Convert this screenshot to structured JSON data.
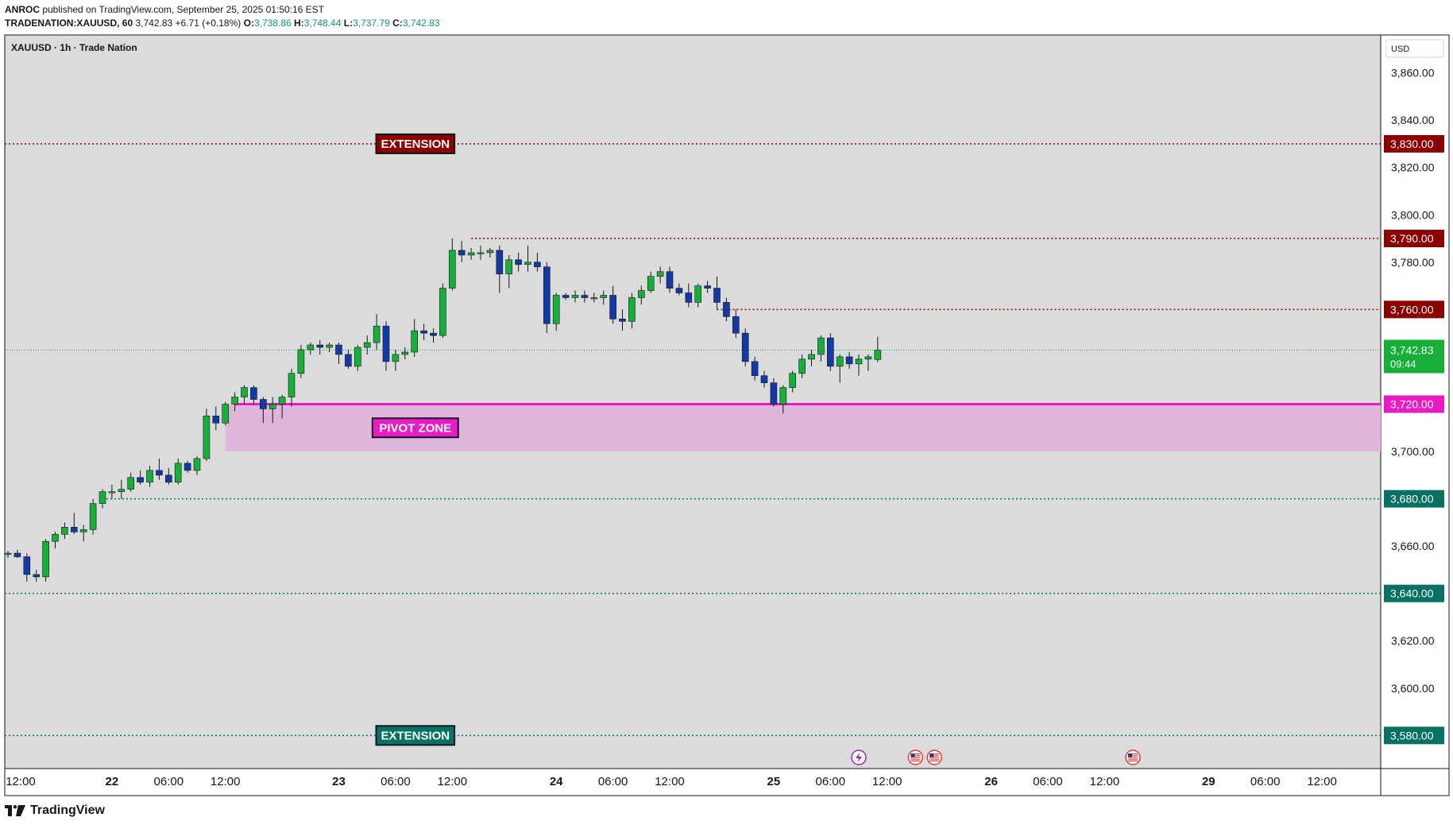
{
  "header": {
    "publisher": "ANROC",
    "published_text": " published on TradingView.com, September 25, 2025 01:50:16 EST",
    "symbol_full": "TRADENATION:XAUUSD, 60",
    "last": "3,742.83",
    "change": "+6.71 (+0.18%)",
    "o_label": "O:",
    "o_value": "3,738.86",
    "h_label": "H:",
    "h_value": "3,748.44",
    "l_label": "L:",
    "l_value": "3,737.79",
    "c_label": "C:",
    "c_value": "3,742.83"
  },
  "footer": {
    "brand": "TradingView"
  },
  "chart_data": {
    "type": "candlestick",
    "title": "XAUUSD · 1h · Trade Nation",
    "currency": "USD",
    "ylim": [
      3566,
      3876
    ],
    "y_ticks": [
      3600,
      3620,
      3640,
      3660,
      3680,
      3700,
      3720,
      3740,
      3760,
      3780,
      3800,
      3820,
      3840,
      3860
    ],
    "y_tick_labels": [
      "3,600.00",
      "3,620.00",
      "3,640.00",
      "3,660.00",
      "3,680.00",
      "3,700.00",
      "3,720.00",
      "3,740.00",
      "3,760.00",
      "3,780.00",
      "3,800.00",
      "3,820.00",
      "3,840.00",
      "3,860.00"
    ],
    "x_ticks": [
      {
        "i": -1,
        "label": "12:00",
        "bold": false
      },
      {
        "i": 11,
        "label": "22",
        "bold": true
      },
      {
        "i": 17,
        "label": "06:00",
        "bold": false
      },
      {
        "i": 23,
        "label": "12:00",
        "bold": false
      },
      {
        "i": 35,
        "label": "23",
        "bold": true
      },
      {
        "i": 41,
        "label": "06:00",
        "bold": false
      },
      {
        "i": 47,
        "label": "12:00",
        "bold": false
      },
      {
        "i": 58,
        "label": "24",
        "bold": true
      },
      {
        "i": 64,
        "label": "06:00",
        "bold": false
      },
      {
        "i": 70,
        "label": "12:00",
        "bold": false
      },
      {
        "i": 81,
        "label": "25",
        "bold": true
      },
      {
        "i": 87,
        "label": "06:00",
        "bold": false
      },
      {
        "i": 93,
        "label": "12:00",
        "bold": false
      },
      {
        "i": 104,
        "label": "26",
        "bold": true
      },
      {
        "i": 110,
        "label": "06:00",
        "bold": false
      },
      {
        "i": 116,
        "label": "12:00",
        "bold": false
      },
      {
        "i": 127,
        "label": "29",
        "bold": true
      },
      {
        "i": 133,
        "label": "06:00",
        "bold": false
      },
      {
        "i": 139,
        "label": "12:00",
        "bold": false
      }
    ],
    "candles": [
      [
        3656.5,
        3658,
        3655,
        3657
      ],
      [
        3657,
        3658.5,
        3655,
        3655.5
      ],
      [
        3655.5,
        3657,
        3645,
        3648
      ],
      [
        3648,
        3650,
        3645,
        3647
      ],
      [
        3647,
        3663,
        3645,
        3662
      ],
      [
        3662,
        3666,
        3659,
        3665
      ],
      [
        3665,
        3670,
        3663,
        3668
      ],
      [
        3668,
        3674,
        3665,
        3666
      ],
      [
        3666,
        3669,
        3662,
        3667
      ],
      [
        3667,
        3680,
        3665,
        3678
      ],
      [
        3678,
        3684,
        3676,
        3683
      ],
      [
        3683,
        3686,
        3680,
        3683
      ],
      [
        3683,
        3688,
        3680,
        3684
      ],
      [
        3684,
        3691,
        3683,
        3689
      ],
      [
        3689,
        3692,
        3686,
        3687
      ],
      [
        3687,
        3694,
        3685,
        3692
      ],
      [
        3692,
        3697,
        3688,
        3690
      ],
      [
        3690,
        3693,
        3686,
        3687
      ],
      [
        3687,
        3697,
        3686,
        3695
      ],
      [
        3695,
        3696,
        3691,
        3692
      ],
      [
        3692,
        3698,
        3690,
        3697
      ],
      [
        3697,
        3718,
        3696,
        3715
      ],
      [
        3715,
        3719,
        3709,
        3712
      ],
      [
        3712,
        3721,
        3711,
        3720
      ],
      [
        3720,
        3725,
        3717,
        3723
      ],
      [
        3723,
        3728,
        3720,
        3727
      ],
      [
        3727,
        3728,
        3720,
        3722
      ],
      [
        3722,
        3723,
        3712,
        3718
      ],
      [
        3718,
        3723,
        3712,
        3720
      ],
      [
        3720,
        3724,
        3714,
        3723
      ],
      [
        3723,
        3735,
        3719,
        3733
      ],
      [
        3733,
        3745,
        3731,
        3743
      ],
      [
        3743,
        3746,
        3741,
        3745
      ],
      [
        3745,
        3747,
        3741,
        3744
      ],
      [
        3744,
        3746,
        3742,
        3745
      ],
      [
        3745,
        3746,
        3737,
        3741
      ],
      [
        3741,
        3743,
        3735,
        3736
      ],
      [
        3736,
        3745,
        3734,
        3744
      ],
      [
        3744,
        3749,
        3741,
        3746
      ],
      [
        3746,
        3758,
        3743,
        3753
      ],
      [
        3753,
        3755,
        3734,
        3738
      ],
      [
        3738,
        3743,
        3734,
        3741
      ],
      [
        3741,
        3744,
        3739,
        3742
      ],
      [
        3742,
        3756,
        3740,
        3751
      ],
      [
        3751,
        3754,
        3747,
        3750
      ],
      [
        3750,
        3752,
        3746,
        3749
      ],
      [
        3749,
        3771,
        3748,
        3769
      ],
      [
        3769,
        3790,
        3768,
        3785
      ],
      [
        3785,
        3789,
        3780,
        3783
      ],
      [
        3783,
        3786,
        3781,
        3784
      ],
      [
        3784,
        3787,
        3781,
        3784
      ],
      [
        3784,
        3786,
        3782,
        3785
      ],
      [
        3785,
        3787,
        3767,
        3775
      ],
      [
        3775,
        3783,
        3769,
        3781
      ],
      [
        3781,
        3784,
        3776,
        3779
      ],
      [
        3779,
        3787,
        3776,
        3780
      ],
      [
        3780,
        3784,
        3776,
        3778
      ],
      [
        3778,
        3780,
        3750,
        3754
      ],
      [
        3754,
        3767,
        3751,
        3766
      ],
      [
        3766,
        3767,
        3764,
        3765
      ],
      [
        3765,
        3768,
        3763,
        3766
      ],
      [
        3766,
        3768,
        3763,
        3765
      ],
      [
        3765,
        3767,
        3763,
        3765
      ],
      [
        3765,
        3768,
        3762,
        3766
      ],
      [
        3766,
        3770,
        3754,
        3756
      ],
      [
        3756,
        3760,
        3751,
        3755
      ],
      [
        3755,
        3767,
        3752,
        3765
      ],
      [
        3765,
        3770,
        3762,
        3768
      ],
      [
        3768,
        3776,
        3767,
        3774
      ],
      [
        3774,
        3778,
        3771,
        3776
      ],
      [
        3776,
        3778,
        3767,
        3769
      ],
      [
        3769,
        3771,
        3766,
        3767
      ],
      [
        3767,
        3771,
        3761,
        3763
      ],
      [
        3763,
        3771,
        3761,
        3770
      ],
      [
        3770,
        3772,
        3767,
        3769
      ],
      [
        3769,
        3774,
        3760,
        3763
      ],
      [
        3763,
        3765,
        3755,
        3757
      ],
      [
        3757,
        3760,
        3748,
        3750
      ],
      [
        3750,
        3752,
        3736,
        3738
      ],
      [
        3738,
        3740,
        3730,
        3732
      ],
      [
        3732,
        3734,
        3727,
        3729
      ],
      [
        3729,
        3731,
        3719,
        3720
      ],
      [
        3720,
        3728,
        3716,
        3727
      ],
      [
        3727,
        3734,
        3725,
        3733
      ],
      [
        3733,
        3741,
        3731,
        3739
      ],
      [
        3739,
        3743,
        3736,
        3741
      ],
      [
        3741,
        3749,
        3738,
        3748
      ],
      [
        3748,
        3750,
        3734,
        3736
      ],
      [
        3736,
        3741,
        3729,
        3740
      ],
      [
        3740,
        3742,
        3735,
        3737
      ],
      [
        3737,
        3741,
        3732,
        3739
      ],
      [
        3739,
        3741,
        3734,
        3740
      ],
      [
        3738.86,
        3748.44,
        3737.79,
        3742.83
      ]
    ],
    "levels": [
      {
        "value": 3830,
        "label": "3,830.00",
        "color": "#8b0000",
        "style": "dotted"
      },
      {
        "value": 3790,
        "label": "3,790.00",
        "color": "#8b0000",
        "style": "dotted",
        "from_i": 49
      },
      {
        "value": 3760,
        "label": "3,760.00",
        "color": "#8b0000",
        "style": "dotted",
        "from_i": 75
      },
      {
        "value": 3742.83,
        "label": "3,742.83",
        "sublabel": "09:44",
        "color": "#16b039",
        "style": "dotted-thin"
      },
      {
        "value": 3720,
        "label": "3,720.00",
        "color": "#e91bc5",
        "style": "solid",
        "from_i": 24
      },
      {
        "value": 3680,
        "label": "3,680.00",
        "color": "#087262",
        "style": "dotted",
        "from_i": 10
      },
      {
        "value": 3640,
        "label": "3,640.00",
        "color": "#087262",
        "style": "dotted"
      },
      {
        "value": 3580,
        "label": "3,580.00",
        "color": "#087262",
        "style": "dotted"
      }
    ],
    "zone": {
      "top": 3720,
      "bottom": 3700,
      "from_i": 23,
      "color": "#dfb6d9"
    },
    "annotations": [
      {
        "text": "EXTENSION",
        "value": 3830,
        "i": 42,
        "bg": "#8b0000"
      },
      {
        "text": "PIVOT ZONE",
        "value": 3710,
        "i": 42,
        "bg": "#e91bc5"
      },
      {
        "text": "EXTENSION",
        "value": 3580,
        "i": 42,
        "bg": "#087262"
      }
    ],
    "events": [
      {
        "i": 90,
        "type": "lightning"
      },
      {
        "i": 96,
        "type": "flag-us"
      },
      {
        "i": 98,
        "type": "flag-us"
      },
      {
        "i": 119,
        "type": "flag-us"
      }
    ],
    "colors": {
      "up": "#16b039",
      "down": "#1239a4",
      "background": "#dbdbdb"
    }
  }
}
